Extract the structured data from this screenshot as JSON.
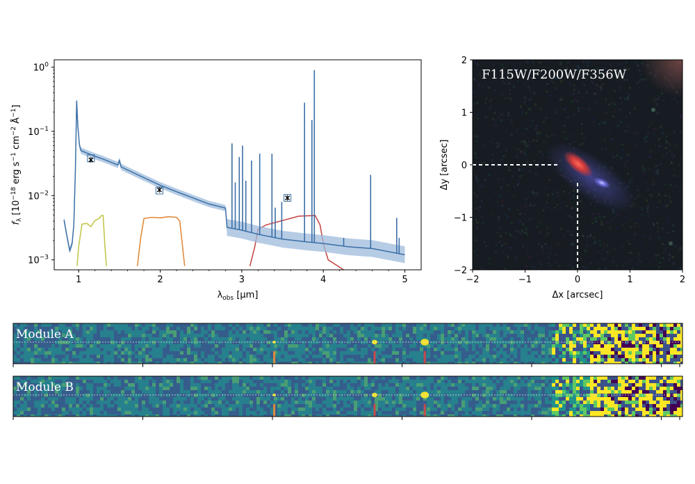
{
  "chart_data": [
    {
      "type": "line",
      "xlabel": "λobs [μm]",
      "xlabel_main": "λ",
      "xlabel_sub": "obs",
      "xlabel_unit": " [μm]",
      "ylabel": "fλ [10⁻¹⁸ erg s⁻¹ cm⁻² Å⁻¹]",
      "ylabel_f": "f",
      "ylabel_lambda": "λ",
      "ylabel_rest": " [10",
      "ylabel_exp1": "−18",
      "ylabel_erg": " erg s",
      "ylabel_exp2": "−1",
      "ylabel_cm": " cm",
      "ylabel_exp3": "−2",
      "ylabel_ang": " Å",
      "ylabel_exp4": "−1",
      "ylabel_close": "]",
      "yscale": "log",
      "xlim": [
        0.7,
        5.2
      ],
      "ylim": [
        0.0007,
        1.3
      ],
      "x_ticks": [
        "1",
        "2",
        "3",
        "4",
        "5"
      ],
      "y_ticks": [
        {
          "value": 1,
          "base": "10",
          "exp": "0"
        },
        {
          "value": 0.1,
          "base": "10",
          "exp": "−1"
        },
        {
          "value": 0.01,
          "base": "10",
          "exp": "−2"
        },
        {
          "value": 0.001,
          "base": "10",
          "exp": "−3"
        }
      ],
      "model_color": "#3a6ea5",
      "band_color": "#9dbbdc",
      "model_continuum": [
        [
          0.82,
          0.0042
        ],
        [
          0.86,
          0.0022
        ],
        [
          0.89,
          0.0014
        ],
        [
          0.92,
          0.0018
        ],
        [
          0.94,
          0.0035
        ],
        [
          0.96,
          0.025
        ],
        [
          0.975,
          0.3
        ],
        [
          0.99,
          0.12
        ],
        [
          1.01,
          0.06
        ],
        [
          1.03,
          0.05
        ],
        [
          1.1,
          0.046
        ],
        [
          1.2,
          0.041
        ],
        [
          1.3,
          0.037
        ],
        [
          1.4,
          0.033
        ],
        [
          1.48,
          0.03
        ],
        [
          1.5,
          0.035
        ],
        [
          1.52,
          0.028
        ],
        [
          1.6,
          0.025
        ],
        [
          1.8,
          0.019
        ],
        [
          2.0,
          0.0145
        ],
        [
          2.2,
          0.0115
        ],
        [
          2.4,
          0.0092
        ],
        [
          2.6,
          0.0074
        ],
        [
          2.8,
          0.0064
        ],
        [
          2.82,
          0.0032
        ],
        [
          3.0,
          0.0029
        ],
        [
          3.2,
          0.0025
        ],
        [
          3.5,
          0.0021
        ],
        [
          3.8,
          0.0019
        ],
        [
          4.0,
          0.0018
        ],
        [
          4.3,
          0.0016
        ],
        [
          4.6,
          0.0015
        ],
        [
          5.0,
          0.0012
        ]
      ],
      "emission_lines": [
        {
          "x": 2.88,
          "peak": 0.065
        },
        {
          "x": 2.92,
          "peak": 0.016
        },
        {
          "x": 2.97,
          "peak": 0.04
        },
        {
          "x": 3.01,
          "peak": 0.06
        },
        {
          "x": 3.05,
          "peak": 0.017
        },
        {
          "x": 3.12,
          "peak": 0.035
        },
        {
          "x": 3.22,
          "peak": 0.045
        },
        {
          "x": 3.37,
          "peak": 0.045
        },
        {
          "x": 3.41,
          "peak": 0.0065
        },
        {
          "x": 3.49,
          "peak": 0.008
        },
        {
          "x": 3.77,
          "peak": 0.28
        },
        {
          "x": 3.86,
          "peak": 0.15
        },
        {
          "x": 3.89,
          "peak": 0.9
        },
        {
          "x": 4.25,
          "peak": 0.0022
        },
        {
          "x": 4.58,
          "peak": 0.021
        },
        {
          "x": 4.9,
          "peak": 0.0045
        },
        {
          "x": 4.93,
          "peak": 0.0022
        }
      ],
      "photometry": [
        {
          "x": 1.15,
          "y": 0.036,
          "model": 0.038
        },
        {
          "x": 1.99,
          "y": 0.0123,
          "model": 0.012
        },
        {
          "x": 3.56,
          "y": 0.0092,
          "model": 0.0092
        }
      ],
      "filters": [
        {
          "name": "F115W",
          "color": "#c2c64b",
          "curve": [
            [
              0.98,
              0.0008
            ],
            [
              1.0,
              0.0016
            ],
            [
              1.04,
              0.0036
            ],
            [
              1.1,
              0.0037
            ],
            [
              1.15,
              0.0033
            ],
            [
              1.2,
              0.0041
            ],
            [
              1.25,
              0.0044
            ],
            [
              1.28,
              0.0049
            ],
            [
              1.3,
              0.0049
            ],
            [
              1.32,
              0.0018
            ],
            [
              1.34,
              0.0008
            ]
          ]
        },
        {
          "name": "F200W",
          "color": "#e08a3c",
          "curve": [
            [
              1.72,
              0.0008
            ],
            [
              1.76,
              0.0022
            ],
            [
              1.8,
              0.0044
            ],
            [
              1.9,
              0.0046
            ],
            [
              2.0,
              0.0045
            ],
            [
              2.1,
              0.0047
            ],
            [
              2.2,
              0.0046
            ],
            [
              2.24,
              0.004
            ],
            [
              2.27,
              0.0018
            ],
            [
              2.3,
              0.0008
            ]
          ]
        },
        {
          "name": "F356W",
          "color": "#c64a4a",
          "curve": [
            [
              3.1,
              0.0008
            ],
            [
              3.16,
              0.0016
            ],
            [
              3.2,
              0.003
            ],
            [
              3.3,
              0.0035
            ],
            [
              3.5,
              0.0041
            ],
            [
              3.7,
              0.0048
            ],
            [
              3.9,
              0.0049
            ],
            [
              3.96,
              0.0035
            ],
            [
              4.0,
              0.0018
            ],
            [
              4.06,
              0.001
            ],
            [
              4.25,
              0.0007
            ]
          ]
        }
      ]
    },
    {
      "type": "image",
      "title": "F115W/F200W/F356W",
      "xlabel": "Δx [arcsec]",
      "ylabel": "Δy [arcsec]",
      "xlim": [
        -2,
        2
      ],
      "ylim": [
        -2,
        2
      ],
      "x_ticks": [
        "−2",
        "−1",
        "0",
        "1",
        "2"
      ],
      "y_ticks": [
        "2",
        "1",
        "0",
        "−1",
        "−2"
      ],
      "crosshair_color": "#ffffff"
    },
    {
      "type": "heatmap",
      "panels": [
        {
          "label": "Module A",
          "lines": [
            {
              "x": 0.39,
              "color": "#e08a3c"
            },
            {
              "x": 0.54,
              "color": "#c64a4a"
            },
            {
              "x": 0.615,
              "color": "#c64a4a"
            }
          ]
        },
        {
          "label": "Module B",
          "lines": [
            {
              "x": 0.39,
              "color": "#e08a3c"
            },
            {
              "x": 0.54,
              "color": "#c64a4a"
            },
            {
              "x": 0.615,
              "color": "#c64a4a"
            }
          ]
        }
      ],
      "colormap": [
        "#440154",
        "#3b528b",
        "#21918c",
        "#5ec962",
        "#fde725"
      ]
    }
  ]
}
